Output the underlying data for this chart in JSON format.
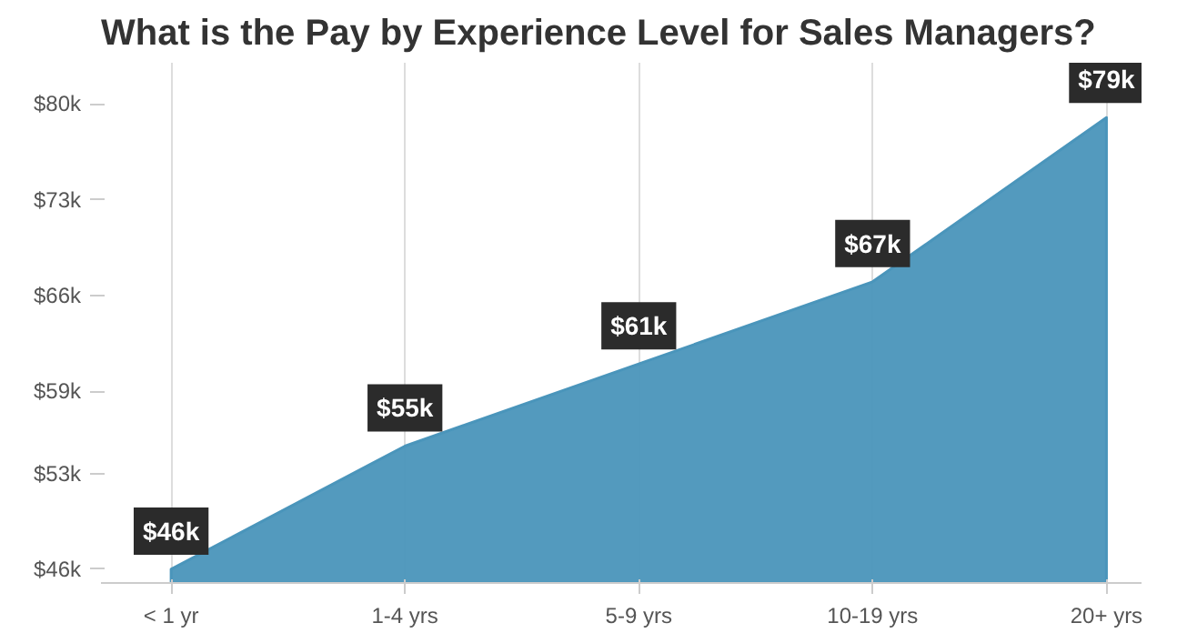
{
  "chart_data": {
    "type": "area",
    "title": "What is the Pay by Experience Level for Sales Managers?",
    "categories": [
      "< 1 yr",
      "1-4 yrs",
      "5-9 yrs",
      "10-19 yrs",
      "20+ yrs"
    ],
    "values": [
      46,
      55,
      61,
      67,
      79
    ],
    "value_labels": [
      "$46k",
      "$55k",
      "$61k",
      "$67k",
      "$79k"
    ],
    "color": "#4a95bb",
    "ylim": [
      45,
      83
    ],
    "yticks": [
      {
        "value": 46,
        "label": "$46k"
      },
      {
        "value": 53,
        "label": "$53k"
      },
      {
        "value": 59,
        "label": "$59k"
      },
      {
        "value": 66,
        "label": "$66k"
      },
      {
        "value": 73,
        "label": "$73k"
      },
      {
        "value": 80,
        "label": "$80k"
      }
    ],
    "grid": "x"
  }
}
